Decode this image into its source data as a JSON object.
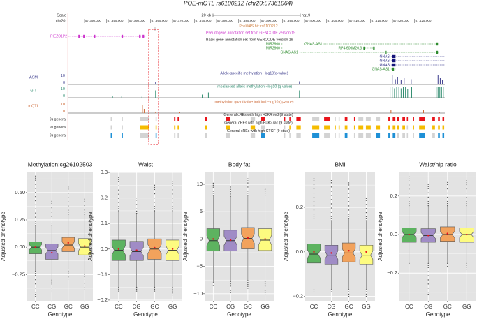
{
  "browser": {
    "title": "POE-mQTL rs6100212 (chr20:57361064)",
    "scale_label": "Scale",
    "chr_label": "chr20:",
    "scale_bar_label": "20 kb",
    "assembly": "hg19",
    "ruler_ticks": [
      "57,350,000",
      "57,355,000",
      "57,360,000",
      "57,365,000",
      "57,370,000",
      "57,375,000",
      "57,380,000",
      "57,385,000",
      "57,390,000",
      "57,395,000",
      "57,400,000",
      "57,405,000",
      "57,410,000",
      "57,415,000",
      "57,420,000",
      "57,425,000"
    ],
    "phewas_label": "PheWAS hit: rs6100212",
    "pseudogene_track_label": "Pseudogene annotation set from GENCODE version 19",
    "basic_track_label": "Basic gene annotation set from GENCODE version 19",
    "colors": {
      "pseudogene": "#cc33cc",
      "noncoding": "#2e8b2e",
      "coding": "#15157a",
      "highlight": "#e8141c"
    },
    "genes": [
      {
        "name": "PIEZO1P2",
        "row": 0,
        "type": "pseudogene",
        "start": 57346.2,
        "end": 57363.7,
        "exons": [
          57348.6,
          57349.7,
          57352.1,
          57358.4,
          57362.4,
          57363.2
        ]
      },
      {
        "name": "MIR2960",
        "row": 1,
        "type": "noncoding",
        "start": 57394.6,
        "end": 57394.8,
        "exons": []
      },
      {
        "name": "GNAS-AS1",
        "row": 1,
        "type": "noncoding",
        "start": 57404.2,
        "end": 57430.3,
        "exons": [
          57430.0
        ]
      },
      {
        "name": "MIR2960",
        "row": 2,
        "type": "noncoding",
        "start": 57394.6,
        "end": 57394.8,
        "exons": []
      },
      {
        "name": "RP4-606M20.3",
        "row": 2,
        "type": "noncoding",
        "start": 57413.2,
        "end": 57415.9,
        "exons": [
          57413.4,
          57415.6
        ]
      },
      {
        "name": "GNAS-AS1",
        "row": 3,
        "type": "noncoding",
        "start": 57398.7,
        "end": 57430.3,
        "exons": [
          57418.3,
          57430.0
        ]
      },
      {
        "name": "GNAS",
        "row": 4,
        "type": "coding",
        "start": 57419.5,
        "end": 57431.7,
        "exons": [
          57419.9
        ]
      },
      {
        "name": "GNAS",
        "row": 5,
        "type": "coding",
        "start": 57419.5,
        "end": 57431.7,
        "exons": [
          57419.9
        ]
      },
      {
        "name": "GNAS",
        "row": 6,
        "type": "coding",
        "start": 57419.5,
        "end": 57431.7,
        "exons": [
          57419.9
        ]
      },
      {
        "name": "GNAS-AS1",
        "row": 7,
        "type": "noncoding",
        "start": 57419.5,
        "end": 57420.6,
        "exons": [
          57420.0
        ]
      }
    ],
    "signal_tracks": [
      {
        "label": "ASM",
        "title": "Allele-specific methylation −log10(q-value)",
        "max_tick": "10",
        "min_tick": "0",
        "max": 10,
        "color": "#3a3a8c",
        "peaks": [
          [
            57366.0,
            2
          ],
          [
            57398.7,
            3
          ],
          [
            57419.8,
            9
          ],
          [
            57420.5,
            5
          ],
          [
            57421.0,
            7
          ],
          [
            57421.8,
            4
          ],
          [
            57422.5,
            6
          ],
          [
            57424.1,
            5
          ],
          [
            57430.2,
            9
          ],
          [
            57430.7,
            6
          ],
          [
            57431.2,
            4
          ]
        ]
      },
      {
        "label": "GIT",
        "title": "Imbalanced allelic methylation −log10 (q-value)",
        "max_tick": "10",
        "min_tick": "0",
        "max": 10,
        "color": "#2e8b6e",
        "peaks": [
          [
            57356.2,
            2
          ],
          [
            57358.3,
            2
          ],
          [
            57362.9,
            1
          ],
          [
            57366.0,
            7
          ],
          [
            57376.6,
            3
          ],
          [
            57378.0,
            5
          ],
          [
            57398.7,
            7
          ],
          [
            57419.3,
            10
          ],
          [
            57419.8,
            10
          ],
          [
            57420.3,
            9
          ],
          [
            57420.8,
            10
          ],
          [
            57421.3,
            10
          ],
          [
            57421.8,
            9
          ],
          [
            57422.3,
            10
          ],
          [
            57422.8,
            10
          ],
          [
            57423.3,
            8
          ],
          [
            57424.2,
            10
          ],
          [
            57429.8,
            10
          ],
          [
            57430.2,
            10
          ],
          [
            57430.6,
            10
          ],
          [
            57431.0,
            10
          ],
          [
            57431.4,
            10
          ]
        ]
      },
      {
        "label": "mQTL",
        "title": "methylation quantitative trait loci −log10 (q-value)",
        "max_tick": "10",
        "min_tick": "0",
        "max": 10,
        "color": "#cc6633",
        "peaks": [
          [
            57363.0,
            8
          ],
          [
            57363.4,
            4
          ],
          [
            57366.0,
            1
          ],
          [
            57371.5,
            1
          ],
          [
            57419.5,
            3
          ],
          [
            57426.9,
            3
          ],
          [
            57430.5,
            1
          ]
        ]
      }
    ],
    "cre_positions": [
      [
        57355.8,
        57356.0
      ],
      [
        57358.3,
        57358.5
      ],
      [
        57362.5,
        57364.6
      ],
      [
        57366.0,
        57366.2
      ],
      [
        57370.2,
        57370.5
      ],
      [
        57371.0,
        57371.3
      ],
      [
        57377.3,
        57377.7
      ],
      [
        57382.0,
        57383.0
      ],
      [
        57387.6,
        57388.6
      ],
      [
        57390.0,
        57390.8
      ],
      [
        57395.2,
        57395.4
      ],
      [
        57396.4,
        57396.6
      ],
      [
        57398.0,
        57399.0
      ],
      [
        57401.6,
        57403.2
      ],
      [
        57404.3,
        57405.7
      ],
      [
        57406.7,
        57406.9
      ],
      [
        57407.6,
        57407.8
      ],
      [
        57409.0,
        57409.6
      ],
      [
        57411.1,
        57411.3
      ],
      [
        57412.1,
        57413.2
      ],
      [
        57413.8,
        57414.9
      ],
      [
        57416.1,
        57417.0
      ],
      [
        57418.9,
        57419.3
      ],
      [
        57419.9,
        57420.5
      ],
      [
        57420.9,
        57421.4
      ],
      [
        57422.1,
        57422.7
      ],
      [
        57423.1,
        57423.3
      ],
      [
        57424.5,
        57424.7
      ],
      [
        57425.9,
        57427.3
      ],
      [
        57428.9,
        57429.5
      ],
      [
        57430.2,
        57430.6
      ],
      [
        57431.2,
        57431.6
      ]
    ],
    "cre_tracks": [
      {
        "label": "9s general",
        "title": "General cREs with high H3K4me3 (9 state)",
        "color": "#e8141c",
        "states": [
          0,
          0,
          0,
          0,
          1,
          1,
          1,
          1,
          0,
          1,
          1,
          1,
          1,
          0,
          1,
          0,
          0,
          1,
          1,
          0,
          0,
          0,
          1,
          1,
          1,
          1,
          1,
          1,
          1,
          1,
          1,
          1
        ]
      },
      {
        "label": "9s general",
        "title": "General cREs with high H3K27ac (9 state)",
        "color": "#f5bc00",
        "states": [
          0,
          0,
          1,
          1,
          1,
          1,
          1,
          1,
          1,
          0,
          0,
          1,
          1,
          1,
          1,
          1,
          1,
          1,
          1,
          1,
          1,
          1,
          1,
          1,
          1,
          1,
          0,
          1,
          1,
          1,
          1,
          1
        ]
      },
      {
        "label": "9s general",
        "title": "General cREs with high CTCF (9 state)",
        "color": "#1e90d6",
        "states": [
          1,
          1,
          0,
          1,
          0,
          0,
          0,
          0,
          0,
          1,
          0,
          0,
          0,
          1,
          0,
          0,
          0,
          1,
          0,
          0,
          0,
          1,
          1,
          1,
          0,
          0,
          0,
          0,
          1,
          0,
          1,
          1
        ]
      }
    ]
  },
  "chart_data": [
    {
      "type": "box",
      "title": "Methylation:cg26102503",
      "xlabel": "Genotype",
      "ylabel": "Adjusted phenotype",
      "categories": [
        "CC",
        "CG",
        "GC",
        "GG"
      ],
      "ylim": [
        -0.49,
        0.69
      ],
      "yticks": [
        -0.25,
        0,
        0.25,
        0.5
      ],
      "ytick_labels": [
        "−0.25",
        "0.00",
        "0.25",
        "0.50"
      ],
      "boxes": [
        {
          "q1": -0.06,
          "median": 0.0,
          "q3": 0.05,
          "mean": 0.0,
          "whisker_low": -0.22,
          "whisker_high": 0.2,
          "min": -0.45,
          "max": 0.65
        },
        {
          "q1": -0.11,
          "median": -0.03,
          "q3": 0.03,
          "mean": -0.05,
          "whisker_low": -0.3,
          "whisker_high": 0.2,
          "min": -0.41,
          "max": 0.42
        },
        {
          "q1": -0.04,
          "median": 0.02,
          "q3": 0.09,
          "mean": 0.04,
          "whisker_low": -0.2,
          "whisker_high": 0.3,
          "min": -0.29,
          "max": 0.55
        },
        {
          "q1": -0.07,
          "median": 0.0,
          "q3": 0.08,
          "mean": 0.01,
          "whisker_low": -0.25,
          "whisker_high": 0.3,
          "min": -0.39,
          "max": 0.44
        }
      ]
    },
    {
      "type": "box",
      "title": "Waist",
      "xlabel": "Genotype",
      "ylabel": "Adjusted phenotype",
      "categories": [
        "CC",
        "CG",
        "GC",
        "GG"
      ],
      "ylim": [
        -0.203,
        0.303
      ],
      "yticks": [
        -0.2,
        -0.1,
        0,
        0.1,
        0.2,
        0.3
      ],
      "ytick_labels": [
        "−0.2",
        "−0.1",
        "0.0",
        "0.1",
        "0.2",
        "0.3"
      ],
      "boxes": [
        {
          "q1": -0.045,
          "median": -0.005,
          "q3": 0.035,
          "mean": 0.0,
          "whisker_low": -0.15,
          "whisker_high": 0.15,
          "min": -0.165,
          "max": 0.28
        },
        {
          "q1": -0.045,
          "median": -0.01,
          "q3": 0.03,
          "mean": -0.005,
          "whisker_low": -0.15,
          "whisker_high": 0.14,
          "min": -0.165,
          "max": 0.2
        },
        {
          "q1": -0.04,
          "median": 0.0,
          "q3": 0.04,
          "mean": 0.005,
          "whisker_low": -0.15,
          "whisker_high": 0.15,
          "min": -0.165,
          "max": 0.25
        },
        {
          "q1": -0.045,
          "median": -0.005,
          "q3": 0.035,
          "mean": 0.0,
          "whisker_low": -0.15,
          "whisker_high": 0.15,
          "min": -0.18,
          "max": 0.265
        }
      ]
    },
    {
      "type": "box",
      "title": "Body fat",
      "xlabel": "Genotype",
      "ylabel": "Adjusted phenotype",
      "categories": [
        "CC",
        "CG",
        "GC",
        "GG"
      ],
      "ylim": [
        -11.3,
        12.3
      ],
      "yticks": [
        -10,
        -5,
        0,
        5,
        10
      ],
      "ytick_labels": [
        "−10",
        "−5",
        "0",
        "5",
        "10"
      ],
      "boxes": [
        {
          "q1": -2.2,
          "median": -0.3,
          "q3": 1.9,
          "mean": 0.0,
          "whisker_low": -8.0,
          "whisker_high": 8.0,
          "min": -8.5,
          "max": 10.2
        },
        {
          "q1": -2.2,
          "median": -0.3,
          "q3": 1.6,
          "mean": -0.2,
          "whisker_low": -7.8,
          "whisker_high": 7.8,
          "min": -9.8,
          "max": 9.5
        },
        {
          "q1": -1.8,
          "median": 0.1,
          "q3": 2.1,
          "mean": 0.2,
          "whisker_low": -7.6,
          "whisker_high": 8.0,
          "min": -9.0,
          "max": 11.0
        },
        {
          "q1": -2.1,
          "median": -0.2,
          "q3": 1.9,
          "mean": 0.0,
          "whisker_low": -7.8,
          "whisker_high": 8.0,
          "min": -10.2,
          "max": 9.1
        }
      ]
    },
    {
      "type": "box",
      "title": "BMI",
      "xlabel": "Genotype",
      "ylabel": "Adjusted phenotype",
      "categories": [
        "CC",
        "CG",
        "GC",
        "GG"
      ],
      "ylim": [
        -0.22,
        0.36
      ],
      "yticks": [
        -0.2,
        0,
        0.2
      ],
      "ytick_labels": [
        "−0.2",
        "0.0",
        "0.2"
      ],
      "boxes": [
        {
          "q1": -0.05,
          "median": -0.01,
          "q3": 0.035,
          "mean": 0.0,
          "whisker_low": -0.17,
          "whisker_high": 0.15,
          "min": -0.18,
          "max": 0.33
        },
        {
          "q1": -0.055,
          "median": -0.015,
          "q3": 0.03,
          "mean": -0.005,
          "whisker_low": -0.17,
          "whisker_high": 0.14,
          "min": -0.18,
          "max": 0.32
        },
        {
          "q1": -0.045,
          "median": -0.005,
          "q3": 0.04,
          "mean": 0.005,
          "whisker_low": -0.17,
          "whisker_high": 0.15,
          "min": -0.2,
          "max": 0.31
        },
        {
          "q1": -0.055,
          "median": -0.015,
          "q3": 0.03,
          "mean": 0.0,
          "whisker_low": -0.17,
          "whisker_high": 0.14,
          "min": -0.2,
          "max": 0.24
        }
      ]
    },
    {
      "type": "box",
      "title": "Waist/hip ratio",
      "xlabel": "Genotype",
      "ylabel": "Adjusted phenotype",
      "categories": [
        "CC",
        "CG",
        "GC",
        "GG"
      ],
      "ylim": [
        -0.344,
        0.326
      ],
      "yticks": [
        -0.2,
        0,
        0.2
      ],
      "ytick_labels": [
        "−0.2",
        "0.0",
        "0.2"
      ],
      "boxes": [
        {
          "q1": -0.04,
          "median": 0.0,
          "q3": 0.035,
          "mean": 0.0,
          "whisker_low": -0.15,
          "whisker_high": 0.15,
          "min": -0.15,
          "max": 0.3
        },
        {
          "q1": -0.04,
          "median": -0.005,
          "q3": 0.03,
          "mean": -0.005,
          "whisker_low": -0.15,
          "whisker_high": 0.15,
          "min": -0.31,
          "max": 0.26
        },
        {
          "q1": -0.035,
          "median": 0.0,
          "q3": 0.04,
          "mean": 0.005,
          "whisker_low": -0.15,
          "whisker_high": 0.15,
          "min": -0.165,
          "max": 0.27
        },
        {
          "q1": -0.04,
          "median": 0.0,
          "q3": 0.035,
          "mean": 0.0,
          "whisker_low": -0.15,
          "whisker_high": 0.15,
          "min": -0.18,
          "max": 0.28
        }
      ]
    }
  ],
  "box_colors": [
    "#5db360",
    "#a08cc6",
    "#f2a25c",
    "#fdfb80"
  ],
  "mean_color": "#e8141c",
  "panel_background": "#e3e3e3"
}
